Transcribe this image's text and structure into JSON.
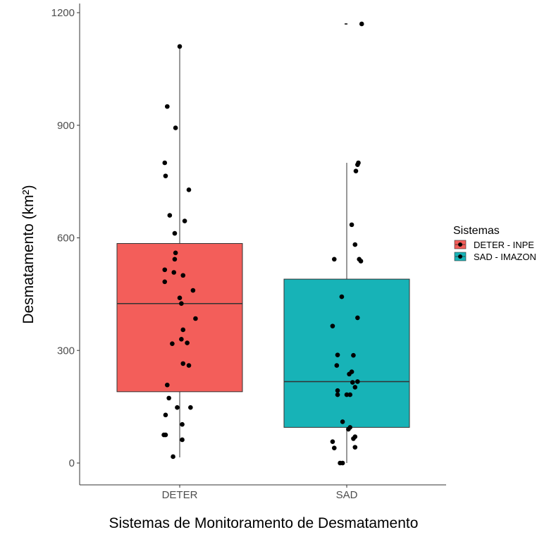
{
  "chart_data": {
    "type": "boxplot",
    "xlabel": "Sistemas de Monitoramento de Desmatamento",
    "ylabel": "Desmatamento (km²)",
    "categories": [
      "DETER",
      "SAD"
    ],
    "ylim": [
      -55,
      1230
    ],
    "yticks": [
      0,
      300,
      600,
      900,
      1200
    ],
    "ytick_labels": [
      "0",
      "300",
      "600",
      "900",
      "1200"
    ],
    "grid": false,
    "legend": {
      "title": "Sistemas",
      "position": "right",
      "entries": [
        {
          "label": "DETER - INPE",
          "color": "#F35E5A"
        },
        {
          "label": "SAD - IMAZON",
          "color": "#17B3B7"
        }
      ]
    },
    "boxes": [
      {
        "category": "DETER",
        "color": "#F35E5A",
        "whisker_low": 15,
        "q1": 190,
        "median": 425,
        "q3": 585,
        "whisker_high": 1110
      },
      {
        "category": "SAD",
        "color": "#17B3B7",
        "whisker_low": 0,
        "q1": 95,
        "median": 217,
        "q3": 490,
        "whisker_high": 800
      }
    ],
    "series": [
      {
        "name": "DETER - INPE",
        "category": "DETER",
        "points": [
          {
            "jitter": 0.0,
            "y": 1110
          },
          {
            "jitter": -0.15,
            "y": 950
          },
          {
            "jitter": -0.05,
            "y": 893
          },
          {
            "jitter": -0.18,
            "y": 800
          },
          {
            "jitter": -0.17,
            "y": 765
          },
          {
            "jitter": 0.11,
            "y": 728
          },
          {
            "jitter": -0.12,
            "y": 660
          },
          {
            "jitter": 0.06,
            "y": 645
          },
          {
            "jitter": -0.06,
            "y": 612
          },
          {
            "jitter": -0.05,
            "y": 560
          },
          {
            "jitter": -0.06,
            "y": 543
          },
          {
            "jitter": -0.18,
            "y": 515
          },
          {
            "jitter": -0.07,
            "y": 508
          },
          {
            "jitter": 0.04,
            "y": 500
          },
          {
            "jitter": -0.18,
            "y": 483
          },
          {
            "jitter": 0.16,
            "y": 460
          },
          {
            "jitter": 0.0,
            "y": 440
          },
          {
            "jitter": 0.02,
            "y": 425
          },
          {
            "jitter": 0.19,
            "y": 385
          },
          {
            "jitter": 0.04,
            "y": 355
          },
          {
            "jitter": 0.02,
            "y": 330
          },
          {
            "jitter": 0.09,
            "y": 320
          },
          {
            "jitter": -0.09,
            "y": 318
          },
          {
            "jitter": 0.04,
            "y": 265
          },
          {
            "jitter": 0.11,
            "y": 260
          },
          {
            "jitter": -0.15,
            "y": 208
          },
          {
            "jitter": -0.13,
            "y": 173
          },
          {
            "jitter": 0.13,
            "y": 148
          },
          {
            "jitter": -0.03,
            "y": 148
          },
          {
            "jitter": -0.17,
            "y": 128
          },
          {
            "jitter": 0.03,
            "y": 103
          },
          {
            "jitter": -0.17,
            "y": 75
          },
          {
            "jitter": -0.19,
            "y": 75
          },
          {
            "jitter": 0.03,
            "y": 62
          },
          {
            "jitter": -0.08,
            "y": 17
          }
        ]
      },
      {
        "name": "SAD - IMAZON",
        "category": "SAD",
        "points": [
          {
            "jitter": 0.18,
            "y": 1170
          },
          {
            "jitter": 0.14,
            "y": 800
          },
          {
            "jitter": 0.13,
            "y": 795
          },
          {
            "jitter": 0.11,
            "y": 778
          },
          {
            "jitter": 0.06,
            "y": 635
          },
          {
            "jitter": 0.1,
            "y": 582
          },
          {
            "jitter": -0.15,
            "y": 543
          },
          {
            "jitter": 0.15,
            "y": 543
          },
          {
            "jitter": 0.17,
            "y": 538
          },
          {
            "jitter": -0.06,
            "y": 443
          },
          {
            "jitter": 0.13,
            "y": 387
          },
          {
            "jitter": -0.17,
            "y": 365
          },
          {
            "jitter": -0.11,
            "y": 288
          },
          {
            "jitter": 0.08,
            "y": 287
          },
          {
            "jitter": -0.12,
            "y": 260
          },
          {
            "jitter": 0.06,
            "y": 243
          },
          {
            "jitter": 0.03,
            "y": 237
          },
          {
            "jitter": 0.13,
            "y": 217
          },
          {
            "jitter": 0.07,
            "y": 215
          },
          {
            "jitter": 0.1,
            "y": 202
          },
          {
            "jitter": -0.11,
            "y": 193
          },
          {
            "jitter": 0.0,
            "y": 182
          },
          {
            "jitter": -0.11,
            "y": 182
          },
          {
            "jitter": 0.04,
            "y": 182
          },
          {
            "jitter": -0.05,
            "y": 110
          },
          {
            "jitter": 0.04,
            "y": 95
          },
          {
            "jitter": 0.02,
            "y": 90
          },
          {
            "jitter": 0.1,
            "y": 70
          },
          {
            "jitter": 0.08,
            "y": 65
          },
          {
            "jitter": -0.17,
            "y": 57
          },
          {
            "jitter": -0.15,
            "y": 40
          },
          {
            "jitter": 0.1,
            "y": 42
          },
          {
            "jitter": -0.08,
            "y": 0
          },
          {
            "jitter": -0.05,
            "y": 0
          }
        ]
      }
    ]
  }
}
